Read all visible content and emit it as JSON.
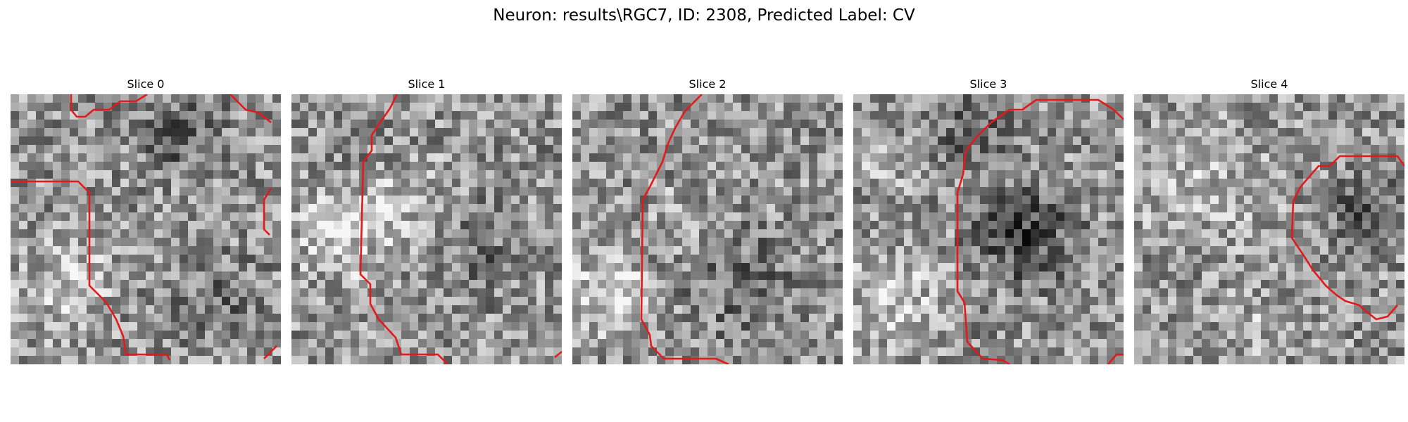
{
  "figure": {
    "title": "Neuron: results\\RGC7, ID: 2308, Predicted Label: CV",
    "contour_color": "#e31a1c",
    "colormap": "gray",
    "slices": [
      {
        "label": "Slice 0"
      },
      {
        "label": "Slice 1"
      },
      {
        "label": "Slice 2"
      },
      {
        "label": "Slice 3"
      },
      {
        "label": "Slice 4"
      }
    ]
  }
}
